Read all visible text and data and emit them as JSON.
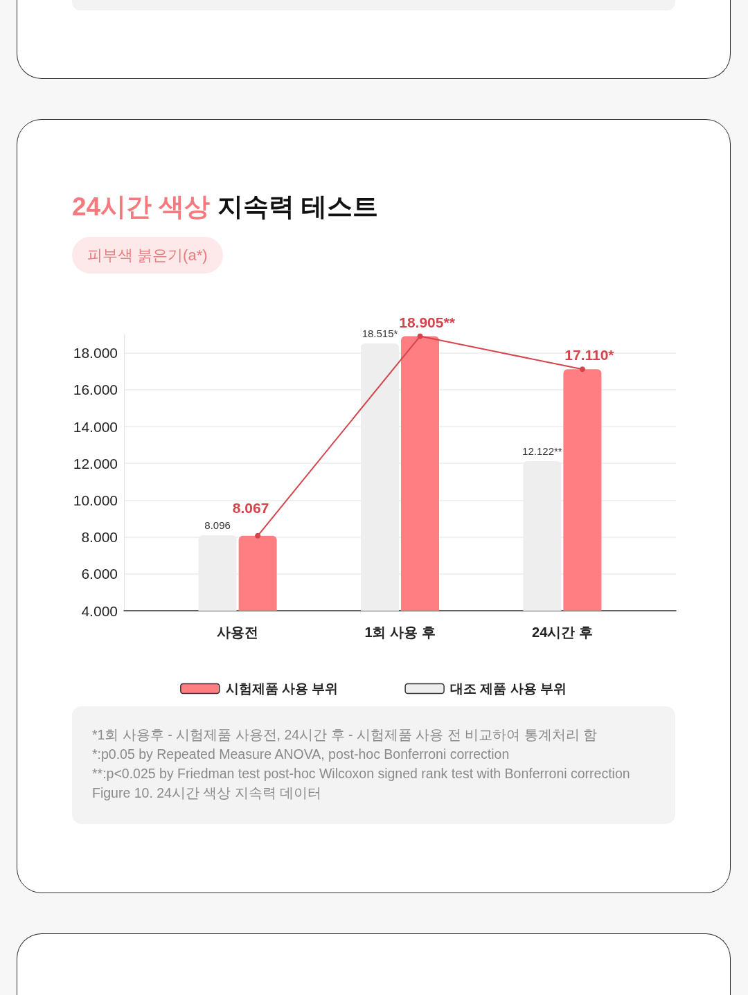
{
  "chart_data": {
    "type": "bar",
    "title": "24시간 색상 지속력 테스트",
    "subtitle": "피부색 붉은기(a*)",
    "categories": [
      "사용전",
      "1회 사용 후",
      "24시간 후"
    ],
    "series": [
      {
        "name": "대조 제품 사용 부위",
        "color": "#eeeeee",
        "values": [
          8.096,
          18.515,
          12.122
        ],
        "value_labels": [
          "8.096",
          "18.515*",
          "12.122**"
        ]
      },
      {
        "name": "시험제품 사용 부위",
        "color": "#fe7e81",
        "values": [
          8.067,
          18.905,
          17.11
        ],
        "value_labels": [
          "8.067",
          "18.905**",
          "17.110*"
        ]
      },
      {
        "type": "line",
        "color": "#d6434b",
        "marker": "circle",
        "values": [
          8.067,
          18.905,
          17.11
        ]
      }
    ],
    "ylim": [
      4,
      19
    ],
    "yticks": [
      {
        "value": 4,
        "label": "4.000"
      },
      {
        "value": 6,
        "label": "6.000"
      },
      {
        "value": 8,
        "label": "8.000"
      },
      {
        "value": 10,
        "label": "10.000"
      },
      {
        "value": 12,
        "label": "12.000"
      },
      {
        "value": 14,
        "label": "14.000"
      },
      {
        "value": 16,
        "label": "16.000"
      },
      {
        "value": 18,
        "label": "18.000"
      }
    ],
    "grid": "y",
    "legend": "bottom",
    "annotations": [
      "*1회 사용후 - 시험제품 사용전, 24시간 후 - 시험제품 사용 전 비교하여 통계처리 함",
      "*:p0.05 by Repeated Measure ANOVA, post-hoc Bonferroni correction",
      "**:p<0.025 by Friedman test post-hoc Wilcoxon signed rank test with Bonferroni correction",
      "Figure 10. 24시간 색상 지속력 데이터"
    ]
  }
}
